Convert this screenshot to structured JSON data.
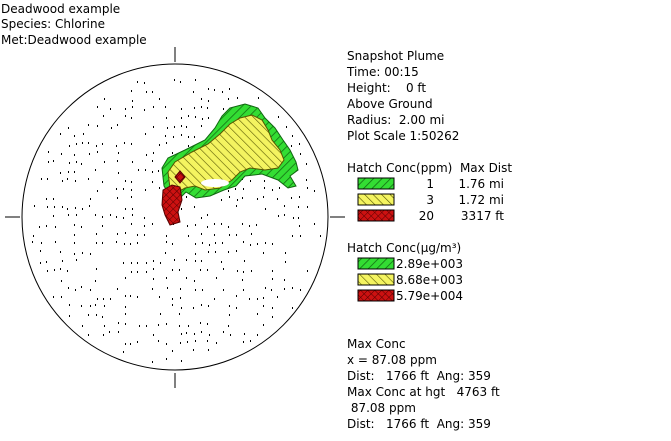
{
  "header": {
    "lines": [
      "Deadwood example",
      "Species: Chlorine",
      "Met:Deadwood example"
    ]
  },
  "info": {
    "title": "Snapshot Plume",
    "lines": [
      "Time: 00:15",
      "Height:    0 ft",
      "Above Ground",
      "Radius:  2.00 mi",
      "Plot Scale 1:50262"
    ]
  },
  "ppm_legend": {
    "title": "Hatch Conc(ppm)  Max Dist",
    "rows": [
      {
        "conc": "1",
        "max_dist": "1.76 mi"
      },
      {
        "conc": "3",
        "max_dist": "1.72 mi"
      },
      {
        "conc": "20",
        "max_dist": "3317 ft"
      }
    ]
  },
  "ug_legend": {
    "title": "Hatch Conc(µg/m³)",
    "rows": [
      "2.89e+003",
      "8.68e+003",
      "5.79e+004"
    ]
  },
  "max_conc": {
    "lines": [
      "Max Conc",
      "x = 87.08 ppm",
      "Dist:   1766 ft  Ang: 359",
      "Max Conc at hgt   4763 ft",
      " 87.08 ppm",
      "Dist:   1766 ft  Ang: 359"
    ]
  }
}
